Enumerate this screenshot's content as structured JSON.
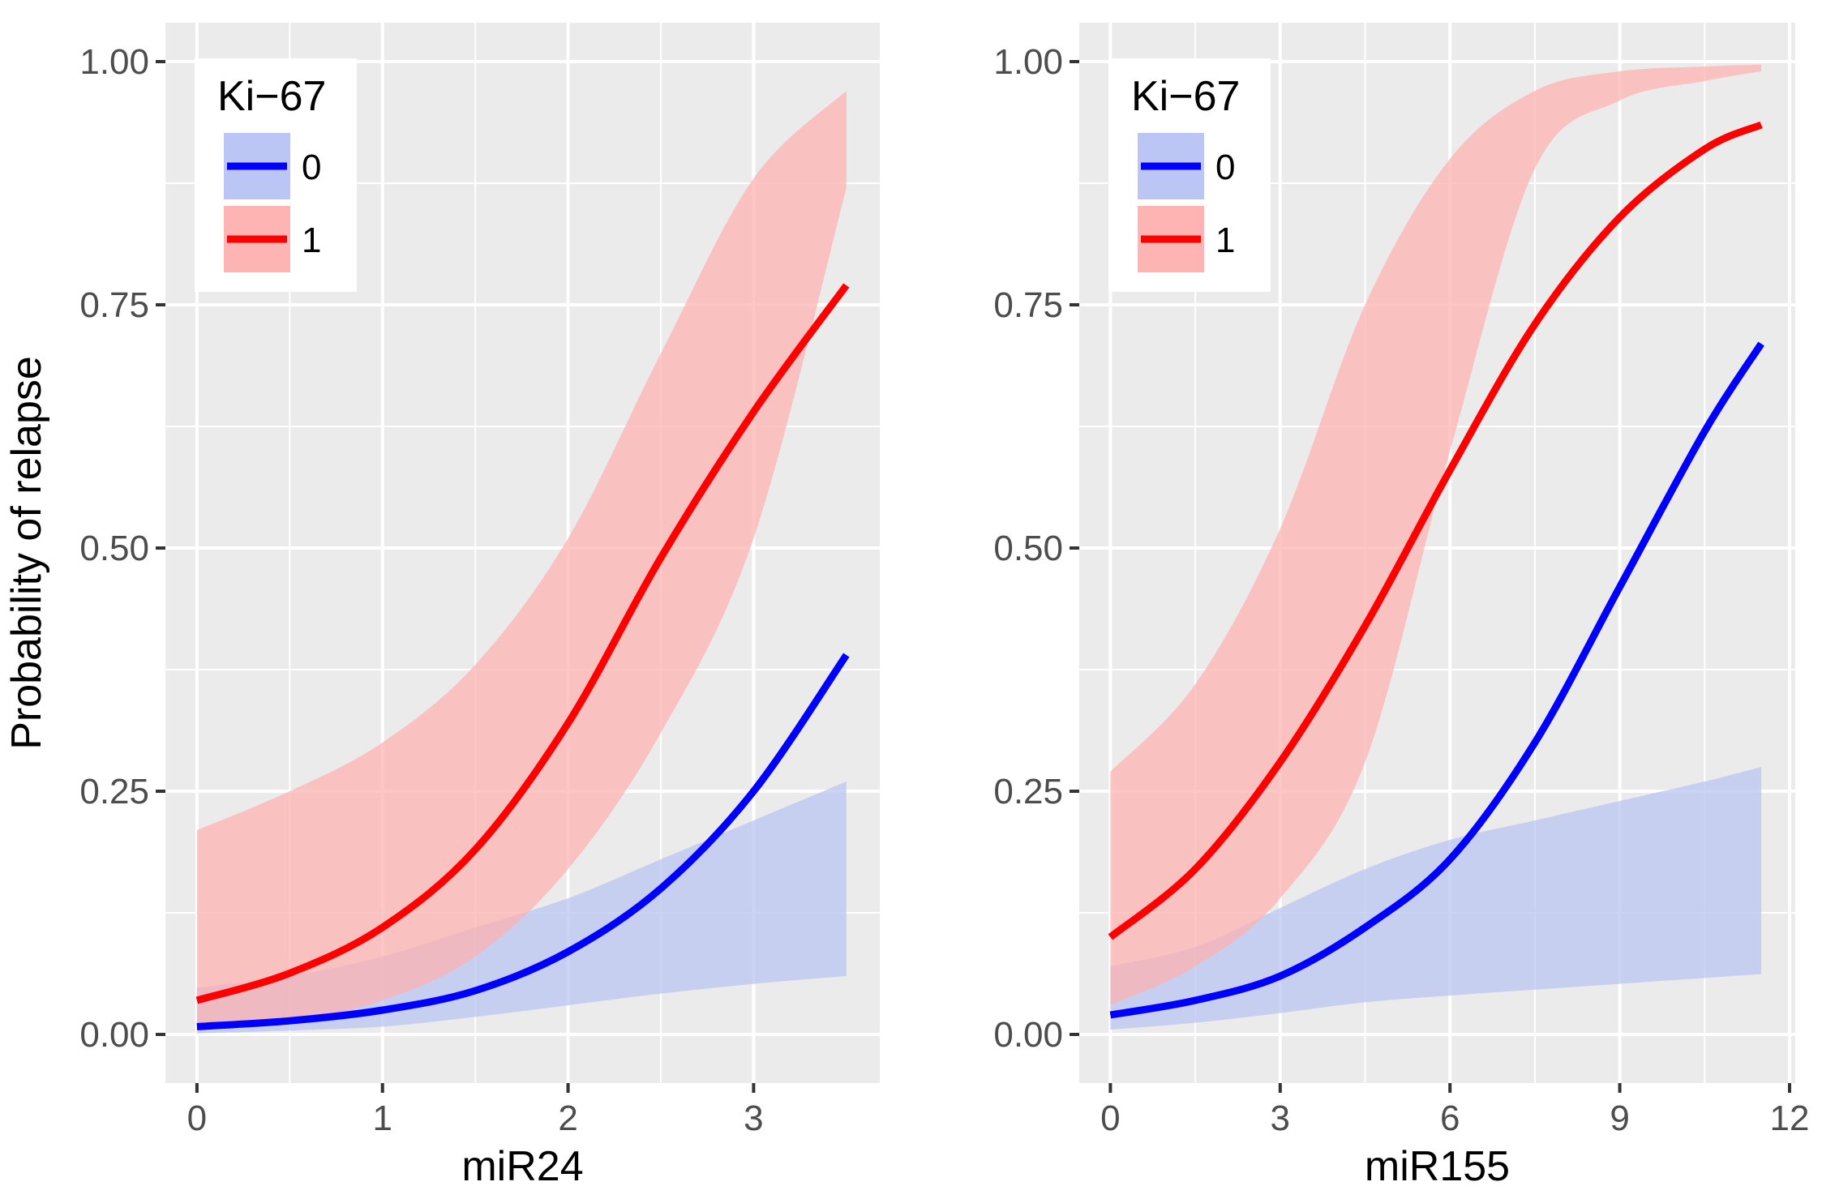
{
  "figure": {
    "ylabel": "Probability of relapse"
  },
  "chart_data": [
    {
      "type": "line",
      "title": "",
      "xlabel": "miR24",
      "ylabel": "Probability of relapse",
      "xlim": [
        -0.17,
        3.68
      ],
      "ylim": [
        -0.05,
        1.04
      ],
      "xticks": [
        0,
        1,
        2,
        3
      ],
      "yticks": [
        0,
        0.25,
        0.5,
        0.75,
        1
      ],
      "ytick_labels": [
        "0.00",
        "0.25",
        "0.50",
        "0.75",
        "1.00"
      ],
      "grid": true,
      "legend": {
        "title": "Ki−67",
        "position": "top-left",
        "entries": [
          "0",
          "1"
        ]
      },
      "x": [
        0,
        0.5,
        1,
        1.5,
        2,
        2.5,
        3,
        3.5
      ],
      "series": [
        {
          "name": "0",
          "color": "#0000FF",
          "fill": "#B8C3F3",
          "values": [
            0.008,
            0.014,
            0.025,
            0.045,
            0.085,
            0.15,
            0.25,
            0.39
          ],
          "lower": [
            0.001,
            0.004,
            0.008,
            0.018,
            0.03,
            0.042,
            0.052,
            0.06
          ],
          "upper": [
            0.048,
            0.06,
            0.08,
            0.11,
            0.14,
            0.18,
            0.22,
            0.26
          ]
        },
        {
          "name": "1",
          "color": "#FF0000",
          "fill": "#FFB0B0",
          "values": [
            0.035,
            0.063,
            0.11,
            0.19,
            0.32,
            0.49,
            0.64,
            0.77
          ],
          "lower": [
            0.004,
            0.013,
            0.035,
            0.08,
            0.17,
            0.31,
            0.51,
            0.87
          ],
          "upper": [
            0.21,
            0.25,
            0.3,
            0.38,
            0.51,
            0.7,
            0.88,
            0.97
          ]
        }
      ]
    },
    {
      "type": "line",
      "title": "",
      "xlabel": "miR155",
      "ylabel": "",
      "xlim": [
        -0.55,
        12.1
      ],
      "ylim": [
        -0.05,
        1.04
      ],
      "xticks": [
        0,
        3,
        6,
        9,
        12
      ],
      "yticks": [
        0,
        0.25,
        0.5,
        0.75,
        1
      ],
      "ytick_labels": [
        "0.00",
        "0.25",
        "0.50",
        "0.75",
        "1.00"
      ],
      "grid": true,
      "legend": {
        "title": "Ki−67",
        "position": "top-left",
        "entries": [
          "0",
          "1"
        ]
      },
      "x": [
        0,
        1.5,
        3,
        4.5,
        6,
        7.5,
        9,
        10.5,
        11.5
      ],
      "series": [
        {
          "name": "0",
          "color": "#0000FF",
          "fill": "#B8C3F3",
          "values": [
            0.02,
            0.035,
            0.06,
            0.11,
            0.18,
            0.3,
            0.46,
            0.62,
            0.71
          ],
          "lower": [
            0.005,
            0.012,
            0.022,
            0.033,
            0.04,
            0.046,
            0.052,
            0.058,
            0.062
          ],
          "upper": [
            0.07,
            0.09,
            0.13,
            0.17,
            0.2,
            0.22,
            0.24,
            0.26,
            0.275
          ]
        },
        {
          "name": "1",
          "color": "#FF0000",
          "fill": "#FFB0B0",
          "values": [
            0.1,
            0.17,
            0.28,
            0.42,
            0.58,
            0.73,
            0.84,
            0.91,
            0.935
          ],
          "lower": [
            0.03,
            0.07,
            0.14,
            0.28,
            0.6,
            0.89,
            0.96,
            0.98,
            0.99
          ],
          "upper": [
            0.27,
            0.36,
            0.52,
            0.75,
            0.9,
            0.97,
            0.99,
            0.995,
            0.997
          ]
        }
      ]
    }
  ]
}
